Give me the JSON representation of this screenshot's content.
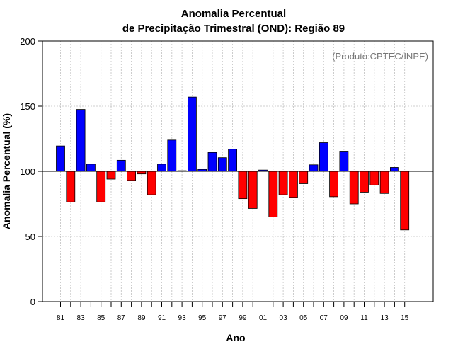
{
  "chart_data": {
    "type": "bar",
    "title": [
      "Anomalia Percentual",
      "de Precipitação Trimestral (OND): Região 89"
    ],
    "credit": "(Produto:CPTEC/INPE)",
    "xlabel": "Ano",
    "ylabel": "Anomalia Percentual (%)",
    "ylim": [
      0,
      200
    ],
    "yticks": [
      0,
      50,
      100,
      150,
      200
    ],
    "baseline": 100,
    "categories": [
      "81",
      "82",
      "83",
      "84",
      "85",
      "86",
      "87",
      "88",
      "89",
      "90",
      "91",
      "92",
      "93",
      "94",
      "95",
      "96",
      "97",
      "98",
      "99",
      "00",
      "01",
      "02",
      "03",
      "04",
      "05",
      "06",
      "07",
      "08",
      "09",
      "10",
      "11",
      "12",
      "13",
      "14",
      "15"
    ],
    "xtick_labels": [
      "81",
      "83",
      "85",
      "87",
      "89",
      "91",
      "93",
      "95",
      "97",
      "99",
      "01",
      "03",
      "05",
      "07",
      "09",
      "11",
      "13",
      "15"
    ],
    "values": [
      119.5,
      76.5,
      147.5,
      105.5,
      76.5,
      94,
      108.5,
      93,
      98,
      82,
      105.5,
      124,
      100.5,
      157,
      101.5,
      114.5,
      110.5,
      117,
      79,
      71.5,
      101,
      65,
      82,
      80,
      90.5,
      105,
      122,
      80.5,
      115.5,
      75,
      84,
      89.5,
      83,
      103,
      55
    ],
    "colors": {
      "above": "#0000ff",
      "below": "#ff0000",
      "grid": "#c0c0c0"
    },
    "grid": true
  }
}
